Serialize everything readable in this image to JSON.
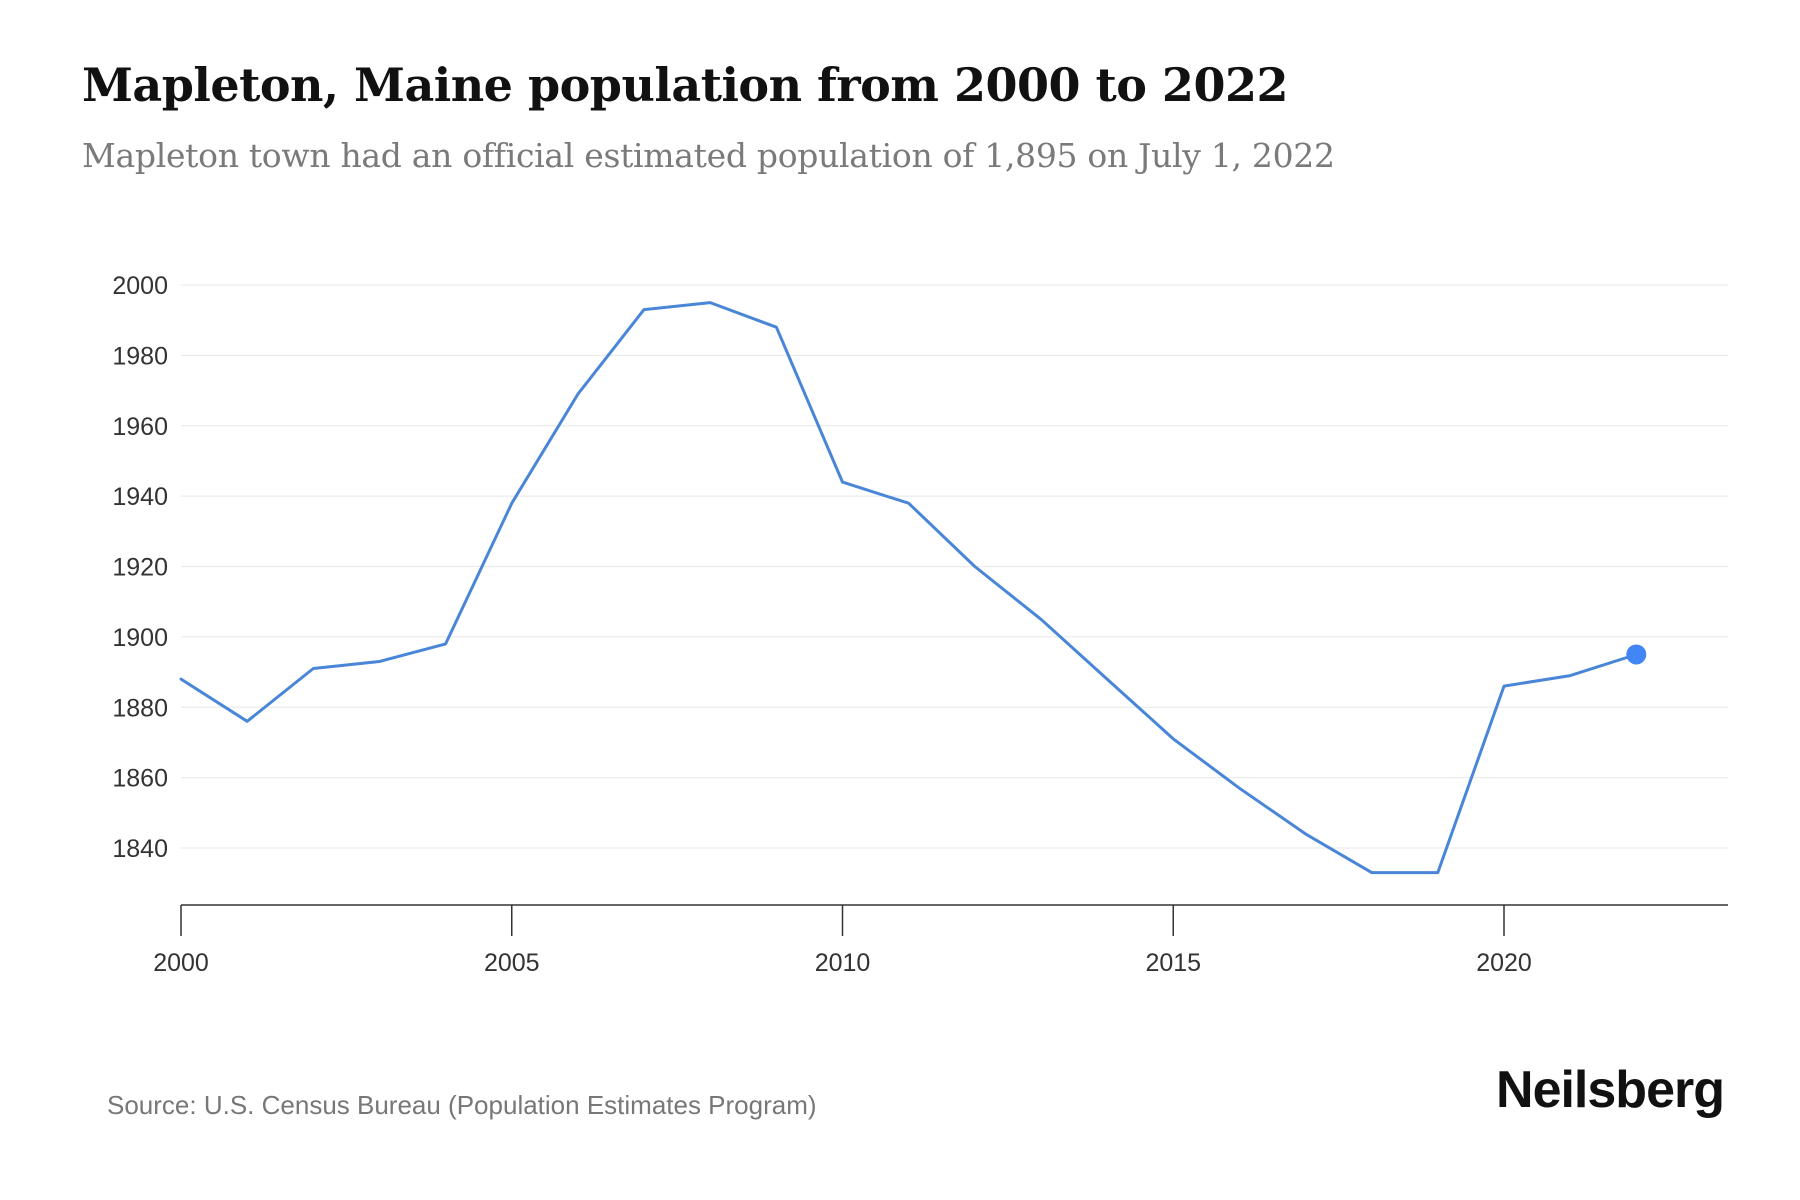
{
  "title": "Mapleton, Maine population from 2000 to 2022",
  "subtitle": "Mapleton town had an official estimated population of 1,895 on July 1, 2022",
  "source": "Source: U.S. Census Bureau (Population Estimates Program)",
  "brand": "Neilsberg",
  "colors": {
    "line": "#4a86d8",
    "marker": "#4285f4",
    "grid": "#ececec",
    "axis": "#333333",
    "tick_label": "#333333"
  },
  "chart_data": {
    "type": "line",
    "title": "Mapleton, Maine population from 2000 to 2022",
    "xlabel": "",
    "ylabel": "",
    "x": [
      2000,
      2001,
      2002,
      2003,
      2004,
      2005,
      2006,
      2007,
      2008,
      2009,
      2010,
      2011,
      2012,
      2013,
      2014,
      2015,
      2016,
      2017,
      2018,
      2019,
      2020,
      2021,
      2022
    ],
    "values": [
      1888,
      1876,
      1891,
      1893,
      1898,
      1938,
      1969,
      1993,
      1995,
      1988,
      1944,
      1938,
      1920,
      1905,
      1888,
      1871,
      1857,
      1844,
      1833,
      1833,
      1886,
      1889,
      1895
    ],
    "xlim": [
      2000,
      2023.4
    ],
    "ylim": [
      1823.5,
      2000
    ],
    "x_ticks": [
      2000,
      2005,
      2010,
      2015,
      2020
    ],
    "y_ticks": [
      1840,
      1860,
      1880,
      1900,
      1920,
      1940,
      1960,
      1980,
      2000
    ],
    "grid": true,
    "highlight_last_point": true,
    "legend": "none"
  }
}
